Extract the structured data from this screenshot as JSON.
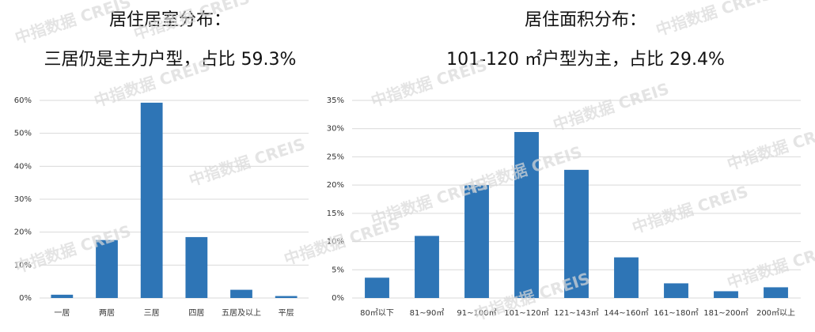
{
  "watermark": "中指数据 CREIS",
  "chart_data": [
    {
      "type": "bar",
      "title": "居住居室分布：",
      "subtitle": "三居仍是主力户型，占比 59.3%",
      "categories": [
        "一居",
        "两居",
        "三居",
        "四居",
        "五居及以上",
        "平层"
      ],
      "values": [
        1.0,
        17.6,
        59.3,
        18.5,
        2.5,
        0.6
      ],
      "color": "#2e75b6",
      "ylim": [
        0,
        60
      ],
      "yticks": [
        {
          "value": 0,
          "label": "0%"
        },
        {
          "value": 10,
          "label": "10%"
        },
        {
          "value": 20,
          "label": "20%"
        },
        {
          "value": 30,
          "label": "30%"
        },
        {
          "value": 40,
          "label": "40%"
        },
        {
          "value": 50,
          "label": "50%"
        },
        {
          "value": 60,
          "label": "60%"
        }
      ],
      "grid": true
    },
    {
      "type": "bar",
      "title": "居住面积分布：",
      "subtitle": "101-120 ㎡户型为主，占比 29.4%",
      "categories": [
        "80㎡以下",
        "81~90㎡",
        "91~100㎡",
        "101~120㎡",
        "121~143㎡",
        "144~160㎡",
        "161~180㎡",
        "181~200㎡",
        "200㎡以上"
      ],
      "values": [
        3.6,
        11.0,
        20.0,
        29.4,
        22.7,
        7.2,
        2.6,
        1.2,
        1.9
      ],
      "color": "#2e75b6",
      "ylim": [
        0,
        35
      ],
      "yticks": [
        {
          "value": 0,
          "label": "0%"
        },
        {
          "value": 5,
          "label": "5%"
        },
        {
          "value": 10,
          "label": "10%"
        },
        {
          "value": 15,
          "label": "15%"
        },
        {
          "value": 20,
          "label": "20%"
        },
        {
          "value": 25,
          "label": "25%"
        },
        {
          "value": 30,
          "label": "30%"
        },
        {
          "value": 35,
          "label": "35%"
        }
      ],
      "grid": true
    }
  ]
}
